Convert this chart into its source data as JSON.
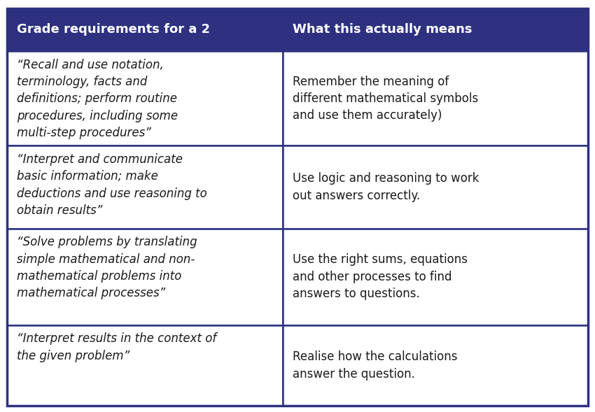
{
  "header": [
    "Grade requirements for a 2",
    "What this actually means"
  ],
  "header_bg": "#2e3180",
  "header_text_color": "#ffffff",
  "row_bg": "#ffffff",
  "border_color": "#2e3180",
  "text_color": "#1a1a1a",
  "rows": [
    {
      "col1": "“Recall and use notation,\nterminology, facts and\ndefinitions; perform routine\nprocedures, including some\nmulti-step procedures”",
      "col2": "Remember the meaning of\ndifferent mathematical symbols\nand use them accurately)"
    },
    {
      "col1": "“Interpret and communicate\nbasic information; make\ndeductions and use reasoning to\nobtain results”",
      "col2": "Use logic and reasoning to work\nout answers correctly."
    },
    {
      "col1": "“Solve problems by translating\nsimple mathematical and non-\nmathematical problems into\nmathematical processes”",
      "col2": "Use the right sums, equations\nand other processes to find\nanswers to questions."
    },
    {
      "col1": "“Interpret results in the context of\nthe given problem”",
      "col2": "Realise how the calculations\nanswer the question."
    }
  ],
  "col_split": 0.475,
  "figsize": [
    8.5,
    5.89
  ],
  "dpi": 100,
  "header_fontsize": 13,
  "cell_fontsize": 12
}
